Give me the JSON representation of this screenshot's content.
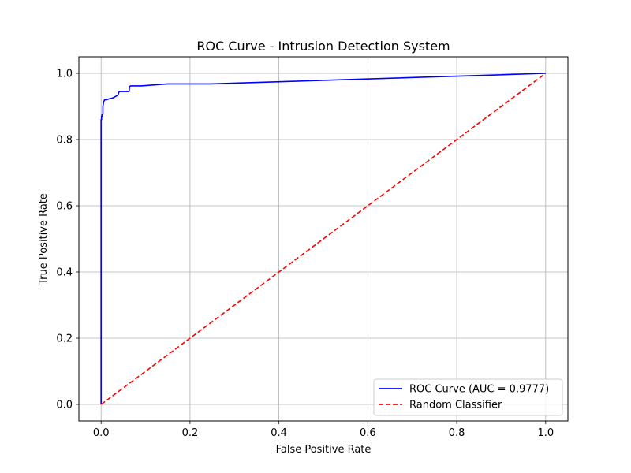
{
  "chart_data": {
    "type": "line",
    "title": "ROC Curve - Intrusion Detection System",
    "xlabel": "False Positive Rate",
    "ylabel": "True Positive Rate",
    "xlim": [
      -0.05,
      1.05
    ],
    "ylim": [
      -0.05,
      1.05
    ],
    "xticks": [
      0.0,
      0.2,
      0.4,
      0.6,
      0.8,
      1.0
    ],
    "yticks": [
      0.0,
      0.2,
      0.4,
      0.6,
      0.8,
      1.0
    ],
    "xtick_labels": [
      "0.0",
      "0.2",
      "0.4",
      "0.6",
      "0.8",
      "1.0"
    ],
    "ytick_labels": [
      "0.0",
      "0.2",
      "0.4",
      "0.6",
      "0.8",
      "1.0"
    ],
    "grid": true,
    "legend_position": "lower-right",
    "series": [
      {
        "name": "ROC Curve (AUC = 0.9777)",
        "color": "#0000ff",
        "style": "solid",
        "x": [
          0.0,
          0.0,
          0.001,
          0.001,
          0.002,
          0.002,
          0.003,
          0.004,
          0.004,
          0.006,
          0.008,
          0.012,
          0.018,
          0.025,
          0.03,
          0.035,
          0.038,
          0.04,
          0.041,
          0.055,
          0.063,
          0.064,
          0.066,
          0.09,
          0.15,
          0.245,
          1.0
        ],
        "y": [
          0.0,
          0.86,
          0.86,
          0.87,
          0.87,
          0.875,
          0.875,
          0.88,
          0.9,
          0.915,
          0.92,
          0.92,
          0.923,
          0.925,
          0.928,
          0.932,
          0.935,
          0.943,
          0.945,
          0.945,
          0.945,
          0.96,
          0.962,
          0.962,
          0.968,
          0.968,
          1.0
        ]
      },
      {
        "name": "Random Classifier",
        "color": "#ff0000",
        "style": "dashed",
        "x": [
          0.0,
          1.0
        ],
        "y": [
          0.0,
          1.0
        ]
      }
    ]
  }
}
